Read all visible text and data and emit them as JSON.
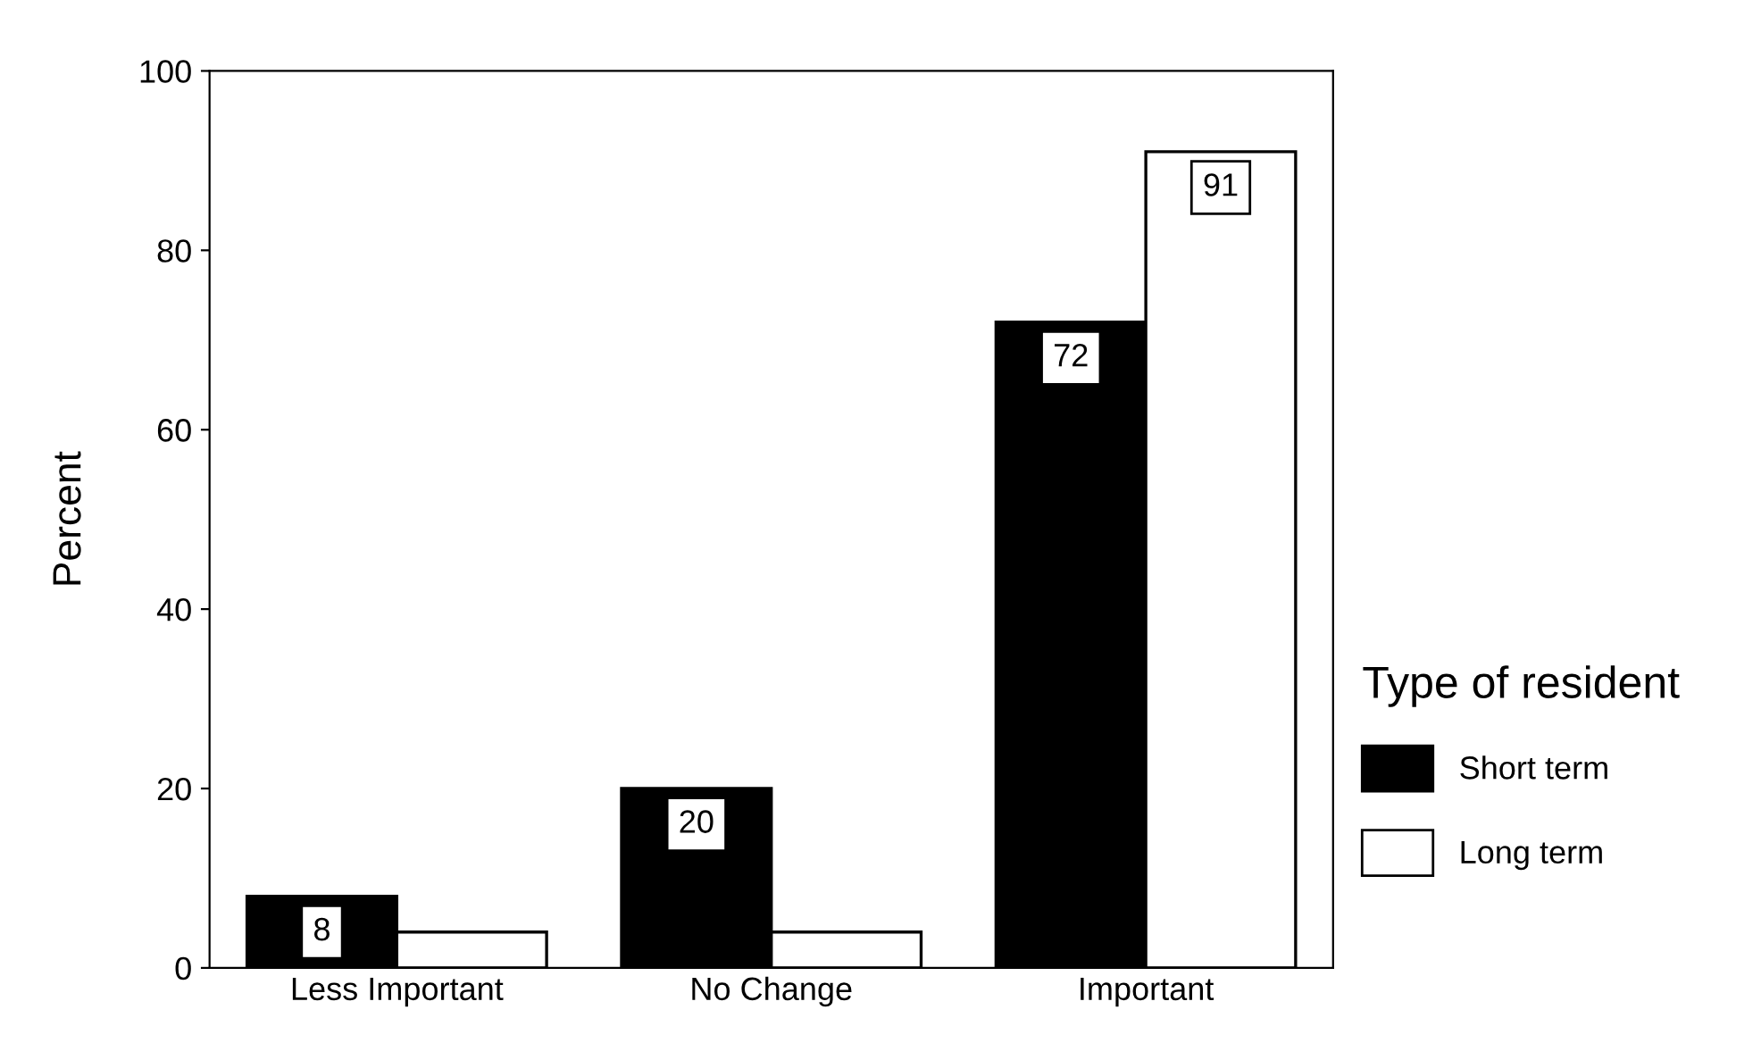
{
  "chart_data": {
    "type": "bar",
    "ylabel": "Percent",
    "legend_title": "Type of resident",
    "categories": [
      "Less Important",
      "No Change",
      "Important"
    ],
    "series": [
      {
        "name": "Short term",
        "color": "#000000",
        "values": [
          8,
          20,
          72
        ],
        "value_labels": [
          "8",
          "20",
          "72"
        ]
      },
      {
        "name": "Long term",
        "color": "#ffffff",
        "values": [
          4,
          4,
          91
        ],
        "value_labels": [
          null,
          null,
          "91"
        ]
      }
    ],
    "ylim": [
      0,
      100
    ],
    "yticks": [
      0,
      20,
      40,
      60,
      80,
      100
    ],
    "grid": false,
    "legend": "right"
  }
}
